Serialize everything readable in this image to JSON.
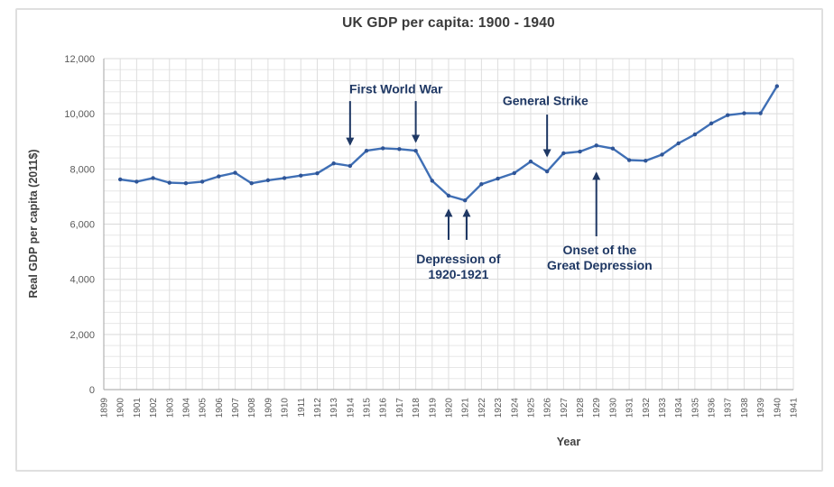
{
  "chart_data": {
    "type": "line",
    "title": "UK GDP per capita: 1900 - 1940",
    "xlabel": "Year",
    "ylabel": "Real GDP per capita (2011$)",
    "grid": true,
    "legend": "none",
    "x_axis": {
      "min": 1899,
      "max": 1941,
      "tick_step": 1,
      "tick_labels": [
        "1899",
        "1900",
        "1901",
        "1902",
        "1903",
        "1904",
        "1905",
        "1906",
        "1907",
        "1908",
        "1909",
        "1910",
        "1911",
        "1912",
        "1913",
        "1914",
        "1915",
        "1916",
        "1917",
        "1918",
        "1919",
        "1920",
        "1921",
        "1922",
        "1923",
        "1924",
        "1925",
        "1926",
        "1927",
        "1928",
        "1929",
        "1930",
        "1931",
        "1932",
        "1933",
        "1934",
        "1935",
        "1936",
        "1937",
        "1938",
        "1939",
        "1940",
        "1941"
      ]
    },
    "y_axis": {
      "min": 0,
      "max": 12000,
      "major_step": 2000,
      "minor_step": 400,
      "tick_labels": [
        "0",
        "2,000",
        "4,000",
        "6,000",
        "8,000",
        "10,000",
        "12,000"
      ]
    },
    "series": [
      {
        "name": "UK real GDP per capita (2011$)",
        "color": "#3F6FB5",
        "marker_color": "#2F5597",
        "x": [
          1900,
          1901,
          1902,
          1903,
          1904,
          1905,
          1906,
          1907,
          1908,
          1909,
          1910,
          1911,
          1912,
          1913,
          1914,
          1915,
          1916,
          1917,
          1918,
          1919,
          1920,
          1921,
          1922,
          1923,
          1924,
          1925,
          1926,
          1927,
          1928,
          1929,
          1930,
          1931,
          1932,
          1933,
          1934,
          1935,
          1936,
          1937,
          1938,
          1939,
          1940
        ],
        "values": [
          7620,
          7540,
          7670,
          7500,
          7480,
          7540,
          7730,
          7860,
          7480,
          7590,
          7670,
          7760,
          7840,
          8200,
          8110,
          8660,
          8750,
          8720,
          8660,
          7570,
          7030,
          6860,
          7450,
          7650,
          7850,
          8270,
          7910,
          8570,
          8630,
          8850,
          8740,
          8320,
          8300,
          8520,
          8930,
          9250,
          9650,
          9950,
          10020,
          10020,
          11000
        ]
      }
    ],
    "annotations": [
      {
        "id": "first-world-war",
        "lines": [
          "First World War"
        ],
        "text_x": 1916.8,
        "text_y": 10890,
        "color": "#1F3864",
        "arrows": [
          {
            "x": 1914,
            "from": 10460,
            "to": 8890
          },
          {
            "x": 1918,
            "from": 10460,
            "to": 8990
          }
        ]
      },
      {
        "id": "general-strike",
        "lines": [
          "General Strike"
        ],
        "text_x": 1925.9,
        "text_y": 10460,
        "color": "#1F3864",
        "arrows": [
          {
            "x": 1926,
            "from": 9970,
            "to": 8470
          }
        ]
      },
      {
        "id": "depression-of-1920-1921",
        "lines": [
          "Depression of",
          "1920-1921"
        ],
        "text_x": 1920.6,
        "text_y": 4450,
        "color": "#1F3864",
        "arrows": [
          {
            "x": 1920,
            "from": 5430,
            "to": 6510
          },
          {
            "x": 1921.1,
            "from": 5430,
            "to": 6510
          }
        ]
      },
      {
        "id": "onset-of-the-great-depression",
        "lines": [
          "Onset of the",
          "Great Depression"
        ],
        "text_x": 1929.2,
        "text_y": 4770,
        "color": "#1F3864",
        "arrows": [
          {
            "x": 1929,
            "from": 5560,
            "to": 7850
          }
        ]
      }
    ],
    "colors": {
      "line": "#3F6FB5",
      "marker": "#2F5597",
      "annotation": "#1F3864",
      "grid_minor": "#e7e7e7",
      "grid_major": "#d9d9d9",
      "grid_vertical": "#dedede",
      "axis_line": "#b3b3b3",
      "tick_text": "#595959",
      "title_text": "#3a3a3a",
      "frame_border": "#dfdfdf"
    }
  }
}
